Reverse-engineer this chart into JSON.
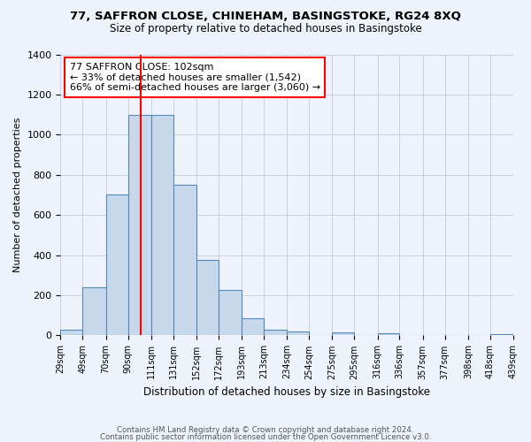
{
  "title": "77, SAFFRON CLOSE, CHINEHAM, BASINGSTOKE, RG24 8XQ",
  "subtitle": "Size of property relative to detached houses in Basingstoke",
  "xlabel": "Distribution of detached houses by size in Basingstoke",
  "ylabel": "Number of detached properties",
  "bar_heights": [
    30,
    240,
    700,
    1100,
    1100,
    750,
    375,
    225,
    85,
    30,
    20,
    0,
    15,
    0,
    10,
    0,
    0,
    0,
    0,
    5
  ],
  "bin_labels": [
    "29sqm",
    "49sqm",
    "70sqm",
    "90sqm",
    "111sqm",
    "131sqm",
    "152sqm",
    "172sqm",
    "193sqm",
    "213sqm",
    "234sqm",
    "254sqm",
    "275sqm",
    "295sqm",
    "316sqm",
    "336sqm",
    "357sqm",
    "377sqm",
    "398sqm",
    "418sqm",
    "439sqm"
  ],
  "bar_color": "#c8d8eb",
  "bar_edge_color": "#5588bb",
  "ylim": [
    0,
    1400
  ],
  "yticks": [
    0,
    200,
    400,
    600,
    800,
    1000,
    1200,
    1400
  ],
  "red_line_x": 102,
  "bin_edges": [
    29,
    49,
    70,
    90,
    111,
    131,
    152,
    172,
    193,
    213,
    234,
    254,
    275,
    295,
    316,
    336,
    357,
    377,
    398,
    418,
    439
  ],
  "annotation_title": "77 SAFFRON CLOSE: 102sqm",
  "annotation_line1": "← 33% of detached houses are smaller (1,542)",
  "annotation_line2": "66% of semi-detached houses are larger (3,060) →",
  "footer_line1": "Contains HM Land Registry data © Crown copyright and database right 2024.",
  "footer_line2": "Contains public sector information licensed under the Open Government Licence v3.0.",
  "background_color": "#eef2fb"
}
